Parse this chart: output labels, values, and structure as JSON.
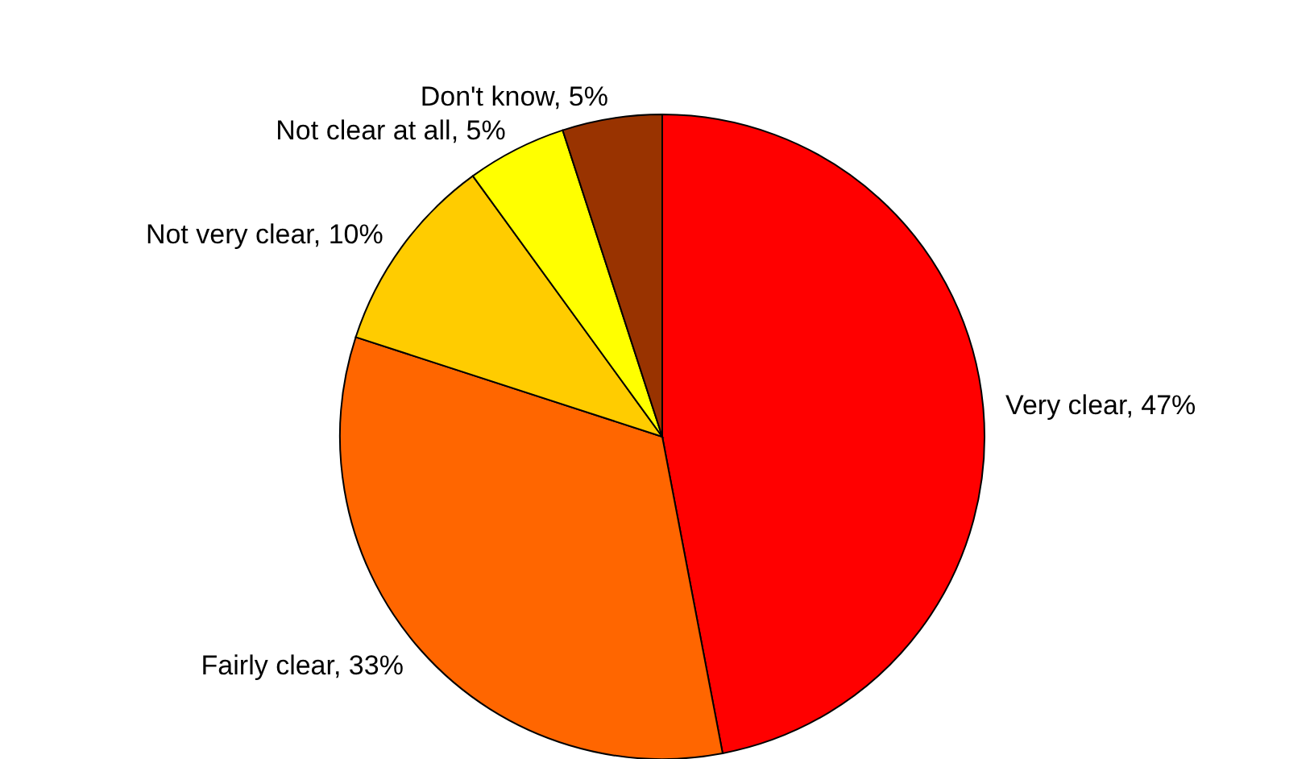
{
  "chart_data": {
    "type": "pie",
    "categories": [
      "Very clear",
      "Fairly clear",
      "Not very clear",
      "Not clear at all",
      "Don't know"
    ],
    "values": [
      47,
      33,
      10,
      5,
      5
    ],
    "value_labels": [
      "47%",
      "33%",
      "10%",
      "5%",
      "5%"
    ],
    "colors": [
      "#ff0000",
      "#ff6600",
      "#ffcc00",
      "#ffff00",
      "#993300"
    ]
  }
}
